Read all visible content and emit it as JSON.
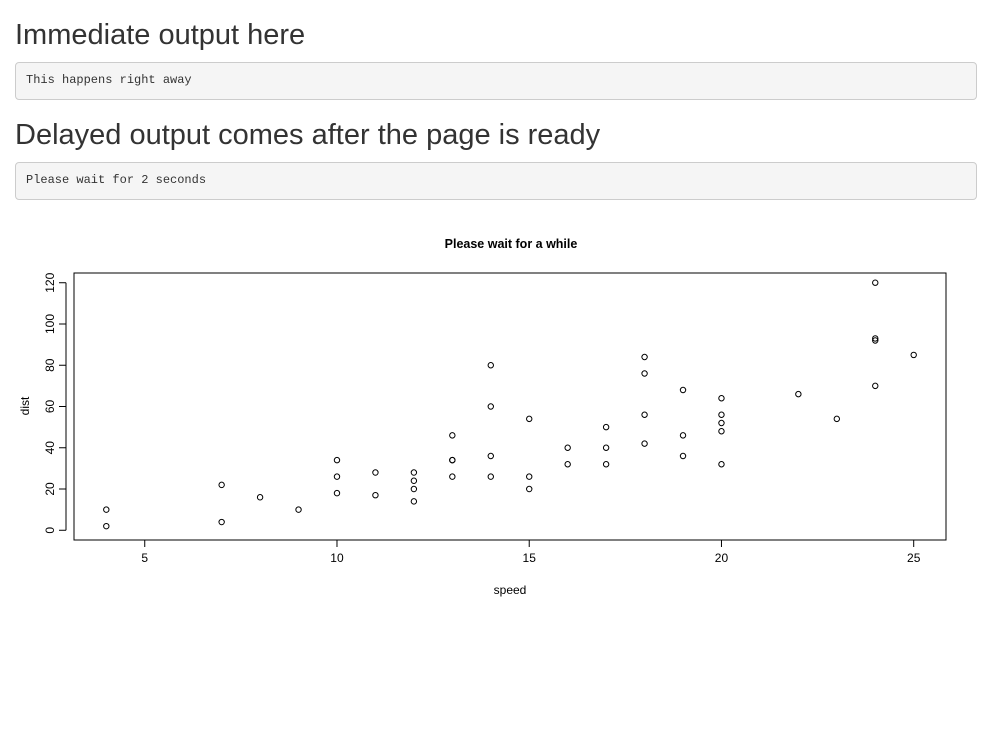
{
  "sections": [
    {
      "heading": "Immediate output here",
      "output": "This happens right away"
    },
    {
      "heading": "Delayed output comes after the page is ready",
      "output": "Please wait for 2 seconds"
    }
  ],
  "chart_data": {
    "type": "scatter",
    "title": "Please wait for a while",
    "xlabel": "speed",
    "ylabel": "dist",
    "xlim": [
      3.16,
      25.84
    ],
    "ylim": [
      -4.72,
      124.72
    ],
    "xticks": [
      5,
      10,
      15,
      20,
      25
    ],
    "yticks": [
      0,
      20,
      40,
      60,
      80,
      100,
      120
    ],
    "grid": false,
    "legend": "none",
    "marker": "open-circle",
    "x": [
      4,
      4,
      7,
      7,
      8,
      9,
      10,
      10,
      10,
      11,
      11,
      12,
      12,
      12,
      12,
      13,
      13,
      13,
      13,
      14,
      14,
      14,
      14,
      15,
      15,
      15,
      16,
      16,
      17,
      17,
      17,
      18,
      18,
      18,
      18,
      19,
      19,
      19,
      20,
      20,
      20,
      20,
      20,
      22,
      23,
      24,
      24,
      24,
      24,
      25
    ],
    "y": [
      2,
      10,
      4,
      22,
      16,
      10,
      18,
      26,
      34,
      17,
      28,
      14,
      20,
      24,
      28,
      26,
      34,
      34,
      46,
      26,
      36,
      60,
      80,
      20,
      26,
      54,
      32,
      40,
      32,
      40,
      50,
      42,
      56,
      76,
      84,
      36,
      46,
      68,
      32,
      48,
      52,
      56,
      64,
      66,
      54,
      70,
      92,
      93,
      120,
      85
    ]
  }
}
